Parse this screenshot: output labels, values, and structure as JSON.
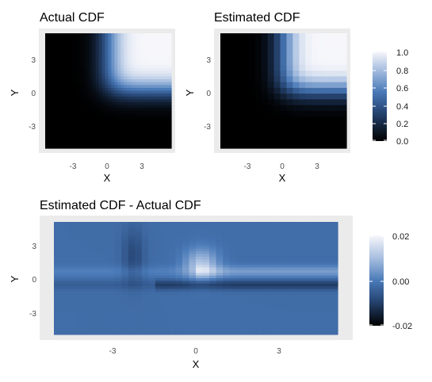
{
  "chart_data": [
    {
      "type": "heatmap",
      "title": "Actual CDF",
      "xlabel": "X",
      "ylabel": "Y",
      "x_ticks": [
        "-3",
        "0",
        "3"
      ],
      "y_ticks": [
        "3",
        "0",
        "-3"
      ],
      "xlim": [
        -5,
        5
      ],
      "ylim": [
        -5,
        5
      ],
      "surface": "joint normal CDF F(x,y) = Phi(x)*Phi(y); near 0 lower-left, near 1 upper-right",
      "legend": {
        "ticks": [
          "1.0",
          "0.8",
          "0.6",
          "0.4",
          "0.2",
          "0.0"
        ],
        "range": [
          0,
          1
        ]
      }
    },
    {
      "type": "heatmap",
      "title": "Estimated CDF",
      "xlabel": "X",
      "ylabel": "Y",
      "x_ticks": [
        "-3",
        "0",
        "3"
      ],
      "y_ticks": [
        "3",
        "0",
        "-3"
      ],
      "xlim": [
        -5,
        5
      ],
      "ylim": [
        -5,
        5
      ],
      "surface": "estimated joint CDF, visually matching the actual CDF"
    },
    {
      "type": "heatmap",
      "title": "Estimated CDF - Actual CDF",
      "xlabel": "X",
      "ylabel": "Y",
      "x_ticks": [
        "-3",
        "0",
        "3"
      ],
      "y_ticks": [
        "3",
        "0",
        "-3"
      ],
      "xlim": [
        -5,
        5
      ],
      "ylim": [
        -5,
        5
      ],
      "surface": "difference mostly ~0; positive ridge near x between -1 and 1, y between 0 and 3; negative band near y between -1 and 0",
      "legend": {
        "ticks": [
          "0.02",
          "0.00",
          "-0.02"
        ],
        "range": [
          -0.025,
          0.025
        ]
      }
    }
  ],
  "colors": {
    "panel_bg": "#ebebeb",
    "grid": "#ffffff",
    "scale_low": "#000000",
    "scale_mid": "#4a7ab8",
    "scale_high": "#f7f7fb"
  }
}
